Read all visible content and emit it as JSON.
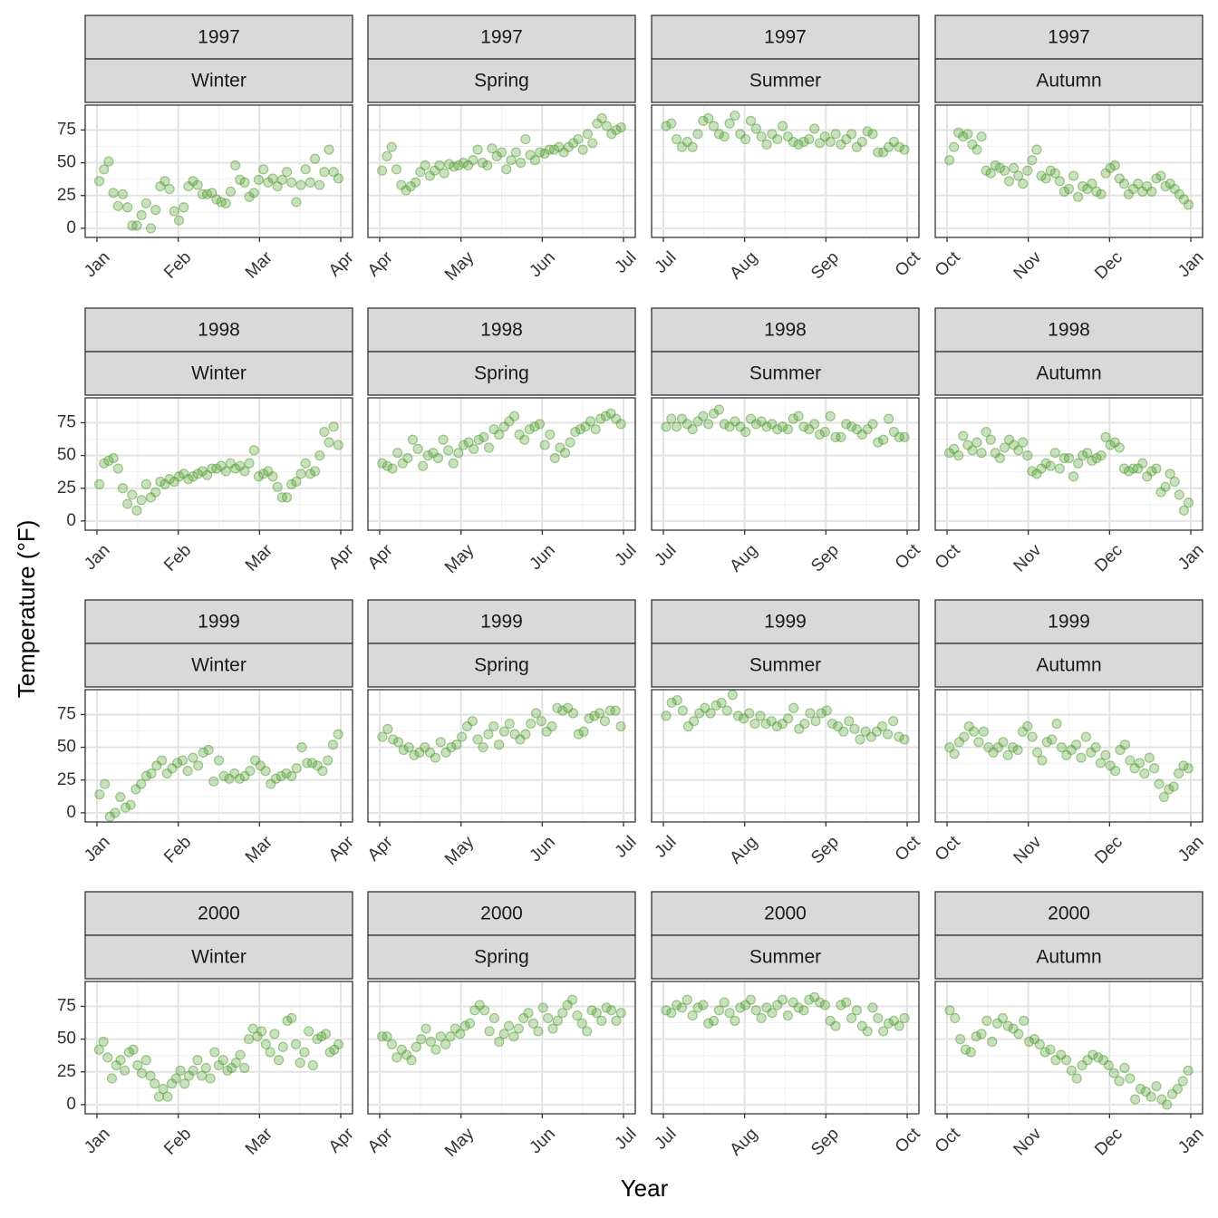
{
  "chart_data": {
    "type": "scatter",
    "x_label": "Year",
    "y_label": "Temperature (°F)",
    "ylim": [
      -7,
      94
    ],
    "yticks": [
      0,
      25,
      50,
      75
    ],
    "color": "#4d9a2a",
    "grid": true,
    "panels": [
      {
        "year": "1997",
        "season": "Winter",
        "months": [
          "Jan",
          "Feb",
          "Mar",
          "Apr"
        ],
        "values": [
          36,
          45,
          51,
          27,
          17,
          26,
          16,
          2,
          2,
          10,
          19,
          0,
          14,
          32,
          36,
          30,
          13,
          6,
          16,
          32,
          36,
          33,
          26,
          26,
          27,
          22,
          20,
          19,
          28,
          48,
          37,
          35,
          24,
          27,
          37,
          45,
          35,
          38,
          32,
          37,
          43,
          35,
          20,
          33,
          45,
          35,
          53,
          33,
          43,
          60,
          43,
          38
        ]
      },
      {
        "year": "1997",
        "season": "Spring",
        "months": [
          "Apr",
          "May",
          "Jun",
          "Jul"
        ],
        "values": [
          44,
          55,
          62,
          45,
          33,
          29,
          32,
          35,
          43,
          48,
          40,
          44,
          48,
          42,
          49,
          47,
          48,
          50,
          48,
          52,
          60,
          50,
          48,
          61,
          55,
          58,
          45,
          52,
          58,
          50,
          68,
          56,
          52,
          58,
          57,
          60,
          60,
          62,
          58,
          62,
          65,
          68,
          60,
          72,
          65,
          80,
          84,
          78,
          72,
          75,
          77
        ]
      },
      {
        "year": "1997",
        "season": "Summer",
        "months": [
          "Jul",
          "Aug",
          "Sep",
          "Oct"
        ],
        "values": [
          78,
          80,
          68,
          62,
          66,
          62,
          72,
          82,
          84,
          78,
          72,
          70,
          80,
          86,
          72,
          68,
          82,
          76,
          70,
          64,
          72,
          68,
          78,
          70,
          66,
          64,
          66,
          68,
          76,
          65,
          70,
          66,
          72,
          64,
          68,
          72,
          62,
          66,
          74,
          72,
          58,
          58,
          62,
          66,
          62,
          60
        ]
      },
      {
        "year": "1997",
        "season": "Autumn",
        "months": [
          "Oct",
          "Nov",
          "Dec",
          "Jan"
        ],
        "values": [
          52,
          62,
          73,
          70,
          72,
          64,
          60,
          70,
          44,
          42,
          48,
          46,
          44,
          36,
          46,
          40,
          34,
          44,
          52,
          60,
          40,
          38,
          44,
          42,
          36,
          28,
          30,
          40,
          24,
          32,
          30,
          34,
          28,
          26,
          42,
          46,
          48,
          38,
          34,
          26,
          30,
          34,
          28,
          32,
          28,
          38,
          40,
          32,
          34,
          30,
          26,
          22,
          18
        ]
      },
      {
        "year": "1998",
        "season": "Winter",
        "months": [
          "Jan",
          "Feb",
          "Mar",
          "Apr"
        ],
        "values": [
          28,
          44,
          46,
          48,
          40,
          25,
          13,
          20,
          8,
          16,
          28,
          18,
          22,
          30,
          28,
          32,
          30,
          34,
          36,
          32,
          34,
          36,
          38,
          35,
          40,
          40,
          42,
          38,
          44,
          40,
          42,
          38,
          44,
          54,
          34,
          36,
          38,
          34,
          26,
          18,
          18,
          28,
          30,
          36,
          44,
          36,
          38,
          50,
          68,
          60,
          72,
          58
        ]
      },
      {
        "year": "1998",
        "season": "Spring",
        "months": [
          "Apr",
          "May",
          "Jun",
          "Jul"
        ],
        "values": [
          44,
          42,
          40,
          52,
          44,
          48,
          62,
          55,
          42,
          50,
          52,
          48,
          62,
          54,
          44,
          52,
          58,
          60,
          55,
          62,
          64,
          56,
          70,
          66,
          72,
          76,
          80,
          66,
          62,
          70,
          72,
          74,
          58,
          66,
          48,
          56,
          52,
          60,
          68,
          70,
          72,
          76,
          70,
          78,
          80,
          82,
          78,
          74
        ]
      },
      {
        "year": "1998",
        "season": "Summer",
        "months": [
          "Jul",
          "Aug",
          "Sep",
          "Oct"
        ],
        "values": [
          72,
          78,
          72,
          78,
          74,
          70,
          76,
          80,
          74,
          82,
          85,
          74,
          72,
          76,
          72,
          68,
          78,
          74,
          76,
          72,
          74,
          70,
          72,
          70,
          78,
          80,
          72,
          70,
          74,
          66,
          68,
          80,
          64,
          64,
          74,
          72,
          70,
          66,
          70,
          74,
          60,
          62,
          78,
          68,
          64,
          64
        ]
      },
      {
        "year": "1998",
        "season": "Autumn",
        "months": [
          "Oct",
          "Nov",
          "Dec",
          "Jan"
        ],
        "values": [
          52,
          55,
          50,
          65,
          58,
          54,
          60,
          52,
          68,
          62,
          52,
          48,
          56,
          62,
          58,
          54,
          60,
          50,
          38,
          36,
          40,
          44,
          42,
          52,
          40,
          48,
          48,
          34,
          44,
          50,
          52,
          46,
          48,
          50,
          64,
          58,
          60,
          56,
          40,
          38,
          40,
          40,
          44,
          34,
          38,
          40,
          22,
          26,
          36,
          30,
          20,
          8,
          14
        ]
      },
      {
        "year": "1999",
        "season": "Winter",
        "months": [
          "Jan",
          "Feb",
          "Mar",
          "Apr"
        ],
        "values": [
          14,
          22,
          -3,
          0,
          12,
          4,
          6,
          18,
          22,
          28,
          30,
          36,
          40,
          30,
          34,
          38,
          40,
          32,
          42,
          36,
          46,
          48,
          24,
          40,
          28,
          26,
          30,
          26,
          28,
          32,
          40,
          36,
          32,
          22,
          26,
          28,
          30,
          28,
          34,
          50,
          38,
          38,
          36,
          32,
          40,
          52,
          60
        ]
      },
      {
        "year": "1999",
        "season": "Spring",
        "months": [
          "Apr",
          "May",
          "Jun",
          "Jul"
        ],
        "values": [
          58,
          64,
          56,
          54,
          48,
          50,
          44,
          46,
          50,
          46,
          42,
          54,
          46,
          50,
          52,
          58,
          66,
          70,
          56,
          50,
          60,
          66,
          52,
          62,
          68,
          60,
          56,
          60,
          68,
          76,
          70,
          62,
          66,
          80,
          78,
          80,
          76,
          60,
          62,
          72,
          74,
          76,
          70,
          78,
          78,
          66
        ]
      },
      {
        "year": "1999",
        "season": "Summer",
        "months": [
          "Jul",
          "Aug",
          "Sep",
          "Oct"
        ],
        "values": [
          74,
          84,
          86,
          78,
          66,
          70,
          76,
          80,
          76,
          82,
          84,
          78,
          90,
          74,
          72,
          76,
          68,
          74,
          68,
          70,
          66,
          68,
          72,
          80,
          64,
          68,
          76,
          70,
          76,
          78,
          68,
          66,
          62,
          70,
          64,
          56,
          62,
          58,
          62,
          66,
          60,
          70,
          58,
          56
        ]
      },
      {
        "year": "1999",
        "season": "Autumn",
        "months": [
          "Oct",
          "Nov",
          "Dec",
          "Jan"
        ],
        "values": [
          50,
          45,
          54,
          58,
          66,
          62,
          54,
          62,
          50,
          46,
          50,
          54,
          44,
          50,
          48,
          62,
          66,
          58,
          46,
          40,
          54,
          56,
          68,
          50,
          44,
          48,
          52,
          42,
          58,
          46,
          50,
          38,
          44,
          36,
          32,
          48,
          52,
          40,
          34,
          38,
          30,
          42,
          34,
          22,
          12,
          18,
          20,
          30,
          36,
          34
        ]
      },
      {
        "year": "2000",
        "season": "Winter",
        "months": [
          "Jan",
          "Feb",
          "Mar",
          "Apr"
        ],
        "values": [
          42,
          48,
          36,
          20,
          30,
          34,
          26,
          40,
          42,
          30,
          24,
          34,
          22,
          16,
          6,
          12,
          6,
          16,
          20,
          26,
          16,
          22,
          26,
          34,
          22,
          28,
          20,
          40,
          30,
          34,
          26,
          28,
          32,
          38,
          28,
          50,
          58,
          52,
          56,
          46,
          40,
          54,
          34,
          44,
          64,
          66,
          46,
          32,
          40,
          56,
          30,
          50,
          52,
          54,
          40,
          42,
          46
        ]
      },
      {
        "year": "2000",
        "season": "Spring",
        "months": [
          "Apr",
          "May",
          "Jun",
          "Jul"
        ],
        "values": [
          52,
          52,
          46,
          36,
          42,
          38,
          34,
          44,
          50,
          58,
          48,
          42,
          52,
          46,
          52,
          58,
          54,
          60,
          62,
          72,
          76,
          72,
          56,
          66,
          48,
          54,
          60,
          52,
          58,
          66,
          70,
          62,
          56,
          74,
          66,
          58,
          64,
          70,
          76,
          80,
          68,
          62,
          56,
          72,
          70,
          64,
          74,
          72,
          64,
          70
        ]
      },
      {
        "year": "2000",
        "season": "Summer",
        "months": [
          "Jul",
          "Aug",
          "Sep",
          "Oct"
        ],
        "values": [
          72,
          70,
          76,
          74,
          80,
          68,
          74,
          76,
          62,
          64,
          72,
          78,
          70,
          64,
          74,
          76,
          80,
          72,
          66,
          74,
          70,
          76,
          80,
          68,
          78,
          74,
          72,
          80,
          82,
          78,
          76,
          64,
          60,
          76,
          78,
          66,
          72,
          60,
          56,
          74,
          66,
          56,
          62,
          64,
          60,
          66
        ]
      },
      {
        "year": "2000",
        "season": "Autumn",
        "months": [
          "Oct",
          "Nov",
          "Dec",
          "Jan"
        ],
        "values": [
          72,
          66,
          50,
          42,
          40,
          52,
          54,
          64,
          48,
          62,
          66,
          60,
          58,
          54,
          64,
          48,
          50,
          46,
          40,
          42,
          34,
          38,
          34,
          26,
          20,
          30,
          34,
          38,
          36,
          34,
          30,
          24,
          18,
          28,
          20,
          4,
          12,
          10,
          6,
          14,
          4,
          0,
          8,
          12,
          18,
          26
        ]
      }
    ]
  }
}
